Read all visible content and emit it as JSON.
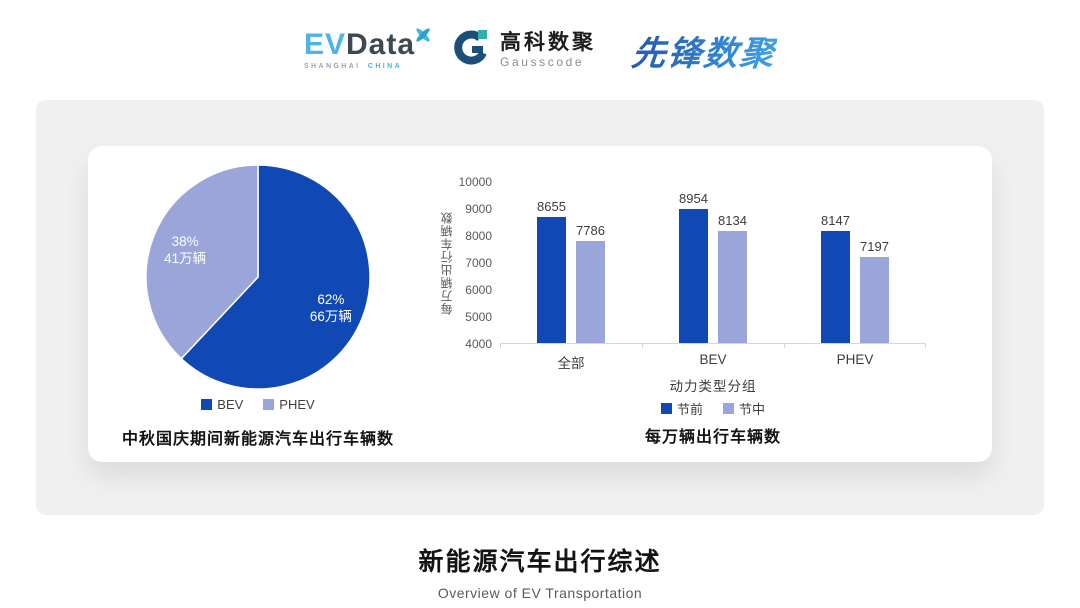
{
  "header": {
    "evdata": {
      "ev": "EV",
      "data": "Data",
      "sub_left": "SHANGHAI",
      "sub_right": "CHINA"
    },
    "gausscode": {
      "cn": "高科数聚",
      "en": "Gausscode"
    },
    "xianfeng": {
      "text": "先锋数聚"
    }
  },
  "brand_colors": {
    "evdata_blue": "#4cb5e5",
    "evdata_dark": "#3d4853",
    "gauss_navy": "#1c4e7a",
    "gauss_teal": "#30b0a4",
    "xianfeng_blue": "#2e7fce",
    "panel_bg": "#f0f0f0"
  },
  "chart_data": [
    {
      "type": "pie",
      "title": "中秋国庆期间新能源汽车出行车辆数",
      "slices": [
        {
          "name": "BEV",
          "percent": 62,
          "amount": "66万辆",
          "color": "#1149b4"
        },
        {
          "name": "PHEV",
          "percent": 38,
          "amount": "41万辆",
          "color": "#9aa5da"
        }
      ],
      "start_angle_deg": 0,
      "legend_position": "bottom",
      "label_text_color": "#ffffff"
    },
    {
      "type": "bar",
      "title": "每万辆出行车辆数",
      "categories": [
        "全部",
        "BEV",
        "PHEV"
      ],
      "series": [
        {
          "name": "节前",
          "values": [
            8655,
            8954,
            8147
          ],
          "color": "#1149b4"
        },
        {
          "name": "节中",
          "values": [
            7786,
            8134,
            7197
          ],
          "color": "#9aa5da"
        }
      ],
      "xlabel": "动力类型分组",
      "ylabel": "每万辆出行车辆数",
      "ylim": [
        4000,
        10000
      ],
      "ytick_step": 1000,
      "grid": false,
      "legend_position": "bottom"
    }
  ],
  "footer": {
    "title": "新能源汽车出行综述",
    "subtitle": "Overview of EV Transportation"
  }
}
